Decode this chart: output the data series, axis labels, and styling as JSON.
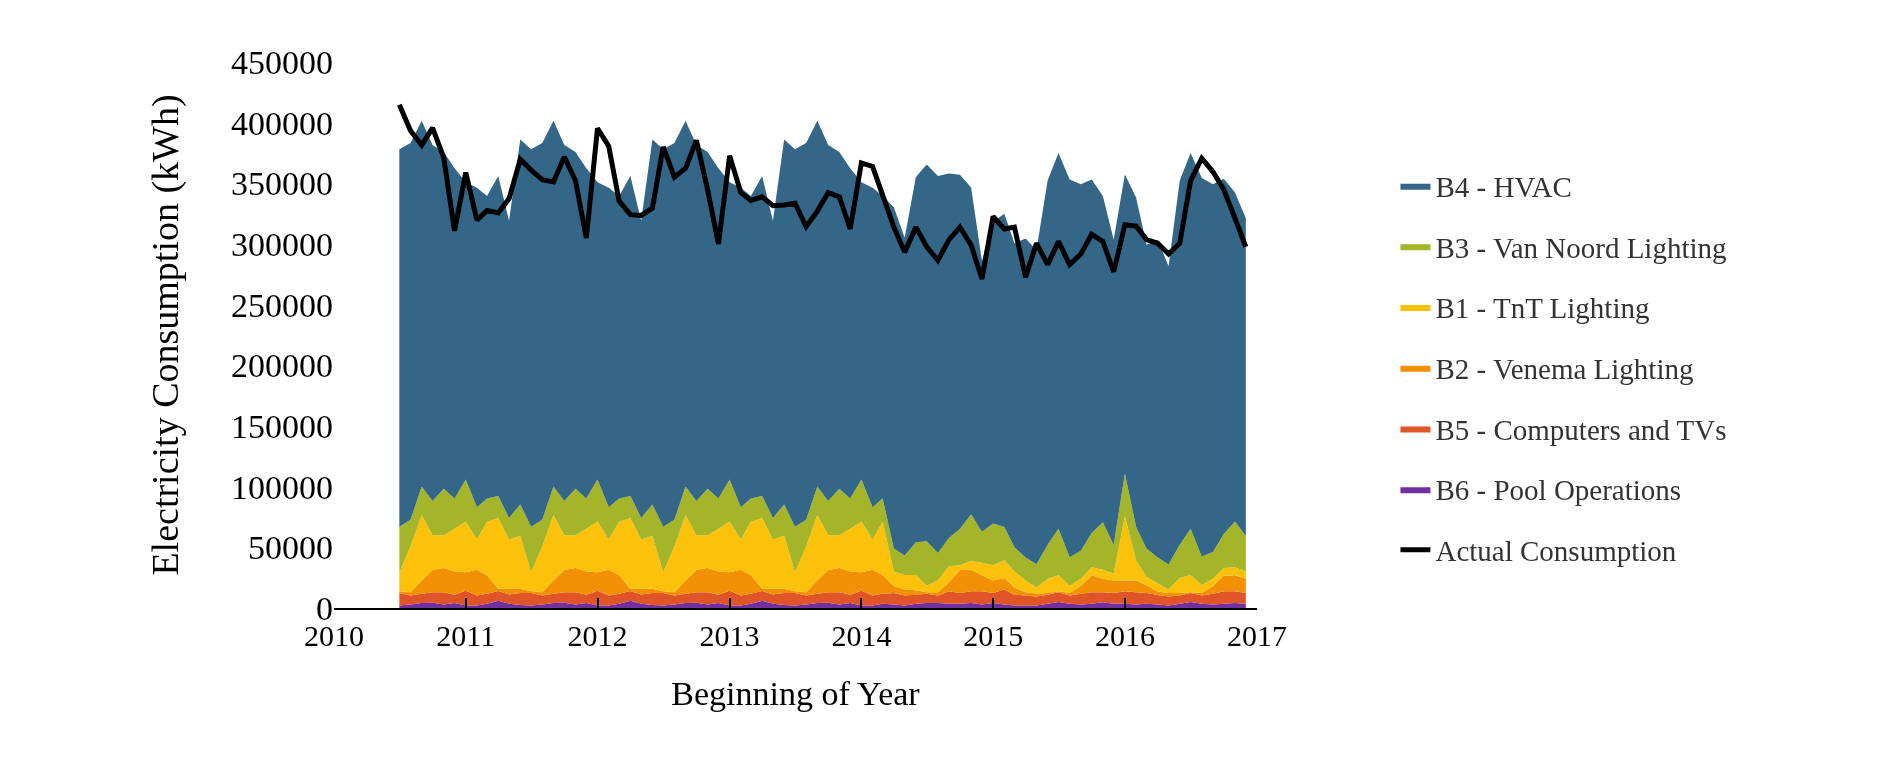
{
  "chart_data": {
    "type": "area",
    "stacked": true,
    "xlabel": "Beginning of Year",
    "ylabel": "Electricity Consumption (kWh)",
    "x": [
      "2010-07",
      "2010-08",
      "2010-09",
      "2010-10",
      "2010-11",
      "2010-12",
      "2011-01",
      "2011-02",
      "2011-03",
      "2011-04",
      "2011-05",
      "2011-06",
      "2011-07",
      "2011-08",
      "2011-09",
      "2011-10",
      "2011-11",
      "2011-12",
      "2012-01",
      "2012-02",
      "2012-03",
      "2012-04",
      "2012-05",
      "2012-06",
      "2012-07",
      "2012-08",
      "2012-09",
      "2012-10",
      "2012-11",
      "2012-12",
      "2013-01",
      "2013-02",
      "2013-03",
      "2013-04",
      "2013-05",
      "2013-06",
      "2013-07",
      "2013-08",
      "2013-09",
      "2013-10",
      "2013-11",
      "2013-12",
      "2014-01",
      "2014-02",
      "2014-03",
      "2014-04",
      "2014-05",
      "2014-06",
      "2014-07",
      "2014-08",
      "2014-09",
      "2014-10",
      "2014-11",
      "2014-12",
      "2015-01",
      "2015-02",
      "2015-03",
      "2015-04",
      "2015-05",
      "2015-06",
      "2015-07",
      "2015-08",
      "2015-09",
      "2015-10",
      "2015-11",
      "2015-12",
      "2016-01",
      "2016-02",
      "2016-03",
      "2016-04",
      "2016-05",
      "2016-06",
      "2016-07",
      "2016-08",
      "2016-09",
      "2016-10",
      "2016-11",
      "2016-12"
    ],
    "series": [
      {
        "name": "B6 - Pool Operations",
        "color": "#7030a0",
        "values": [
          2100,
          2900,
          4100,
          4400,
          2900,
          4100,
          2100,
          2100,
          3500,
          5900,
          3500,
          2400,
          2100,
          2900,
          4100,
          4400,
          2900,
          4100,
          2100,
          2100,
          3500,
          5900,
          3500,
          2400,
          2100,
          2900,
          4100,
          4400,
          2900,
          4100,
          2100,
          2100,
          3500,
          5900,
          3500,
          2400,
          2100,
          2900,
          4100,
          4400,
          2900,
          4100,
          2100,
          2100,
          3500,
          2900,
          2100,
          3500,
          4100,
          4100,
          3500,
          3500,
          4100,
          2900,
          4100,
          2900,
          2100,
          2100,
          2100,
          3500,
          5000,
          3500,
          2900,
          3500,
          4700,
          3500,
          3500,
          2900,
          3500,
          2900,
          2100,
          3500,
          5000,
          3500,
          2900,
          3500,
          4100,
          3500
        ]
      },
      {
        "name": "B5 - Computers and TVs",
        "color": "#e05527",
        "values": [
          10300,
          7400,
          7700,
          8500,
          10000,
          6800,
          12100,
          8200,
          8200,
          8200,
          7700,
          10000,
          10300,
          7400,
          7700,
          8500,
          10000,
          6800,
          12100,
          8200,
          8200,
          8200,
          7700,
          10000,
          10300,
          7400,
          7700,
          8500,
          10000,
          6800,
          12100,
          8200,
          8200,
          8200,
          7700,
          10000,
          10300,
          7400,
          7700,
          8500,
          10000,
          6800,
          12100,
          8200,
          8200,
          9400,
          8200,
          7400,
          7700,
          6200,
          10300,
          8800,
          9700,
          10900,
          8200,
          12400,
          8800,
          8200,
          7400,
          7400,
          7900,
          6800,
          8800,
          9400,
          8200,
          8800,
          10300,
          10000,
          8800,
          7900,
          7400,
          6800,
          7400,
          6800,
          8800,
          10300,
          9700,
          8800
        ]
      },
      {
        "name": "B2 - Venema Lighting",
        "color": "#f39106",
        "values": [
          1500,
          2600,
          10900,
          18500,
          20000,
          19100,
          15300,
          21200,
          15300,
          1800,
          4700,
          3500,
          1500,
          2600,
          10900,
          18500,
          20000,
          19100,
          15300,
          21200,
          15300,
          1800,
          4700,
          3500,
          1500,
          2600,
          10900,
          18500,
          20000,
          19100,
          15300,
          21200,
          15300,
          1800,
          4700,
          3500,
          1500,
          2600,
          10900,
          18500,
          20000,
          19100,
          15300,
          21200,
          15300,
          5900,
          5000,
          3800,
          1200,
          2600,
          7400,
          19100,
          17700,
          13200,
          10300,
          9400,
          5900,
          2600,
          2400,
          1500,
          900,
          2100,
          6500,
          14100,
          11200,
          10300,
          8800,
          9700,
          6500,
          2900,
          2900,
          2100,
          600,
          2100,
          6500,
          12700,
          13200,
          11800
        ]
      },
      {
        "name": "B1 - TnT Lighting",
        "color": "#fbc10b",
        "values": [
          15600,
          37700,
          53900,
          28500,
          27100,
          35300,
          41800,
          25000,
          44100,
          58300,
          40600,
          43600,
          15600,
          37700,
          53900,
          28500,
          27100,
          35300,
          41800,
          25000,
          44100,
          58300,
          40600,
          43600,
          15600,
          37700,
          53900,
          28500,
          27100,
          35300,
          41800,
          25000,
          44100,
          58300,
          40600,
          43600,
          15600,
          37700,
          53900,
          28500,
          27100,
          35300,
          41800,
          25000,
          44100,
          11800,
          11800,
          12400,
          5300,
          9700,
          13200,
          3800,
          7400,
          10300,
          12700,
          14700,
          13200,
          9700,
          5000,
          11800,
          13200,
          5900,
          5900,
          6500,
          7400,
          5900,
          53000,
          16800,
          6800,
          6800,
          2900,
          12400,
          14100,
          6500,
          5900,
          6500,
          6500,
          5900
        ]
      },
      {
        "name": "B3 - Van Noord Lighting",
        "color": "#a5b52a",
        "values": [
          37400,
          22100,
          23500,
          28300,
          38300,
          25000,
          34700,
          26500,
          19100,
          18200,
          17700,
          25900,
          37400,
          22100,
          23500,
          28300,
          38300,
          25000,
          34700,
          26500,
          19100,
          18200,
          17700,
          25900,
          37400,
          22100,
          23500,
          28300,
          38300,
          25000,
          34700,
          26500,
          19100,
          18200,
          17700,
          25900,
          37400,
          22100,
          23500,
          28300,
          38300,
          25000,
          34700,
          26500,
          19100,
          19100,
          16200,
          27100,
          36800,
          22700,
          23500,
          30000,
          38300,
          25600,
          34400,
          27400,
          20000,
          19100,
          19100,
          28000,
          38300,
          23500,
          23000,
          28300,
          39100,
          23500,
          35300,
          27400,
          23500,
          21200,
          20600,
          27400,
          38300,
          23500,
          22100,
          28000,
          37700,
          29400
        ]
      },
      {
        "name": "B4 - HVAC",
        "color": "#336687",
        "values": [
          311100,
          310500,
          301400,
          293400,
          277500,
          272200,
          244900,
          263400,
          249300,
          263700,
          244900,
          300800,
          311100,
          310500,
          301400,
          293400,
          277500,
          272200,
          244900,
          263400,
          249300,
          263700,
          244900,
          300800,
          311100,
          310500,
          301400,
          293400,
          277500,
          272200,
          244900,
          263400,
          249300,
          263700,
          244900,
          300800,
          311100,
          310500,
          301400,
          293400,
          277500,
          272200,
          244900,
          263400,
          249300,
          281100,
          261900,
          301100,
          310500,
          310800,
          300200,
          291900,
          269300,
          223100,
          248700,
          258100,
          250700,
          262800,
          259000,
          300200,
          309600,
          311400,
          302200,
          291400,
          269000,
          251600,
          246300,
          271600,
          250200,
          261900,
          245700,
          300200,
          309600,
          312000,
          303100,
          292800,
          271300,
          261900
        ]
      },
      {
        "name": "Actual Consumption",
        "color": "#000000",
        "type": "line",
        "values": [
          414800,
          393300,
          381500,
          395700,
          371200,
          310900,
          358900,
          319700,
          327700,
          325600,
          337400,
          369800,
          360900,
          353000,
          351200,
          371800,
          352100,
          305000,
          395400,
          380700,
          335300,
          324200,
          323600,
          329500,
          380100,
          355100,
          362400,
          385400,
          344800,
          300000,
          372700,
          342400,
          335900,
          338900,
          331500,
          332100,
          333600,
          314400,
          327100,
          342400,
          338900,
          312400,
          366800,
          363900,
          340300,
          313900,
          293300,
          313900,
          297700,
          286500,
          303600,
          313900,
          299100,
          271200,
          322700,
          312400,
          313900,
          272700,
          300600,
          283000,
          302100,
          283000,
          291800,
          308000,
          302100,
          277100,
          315900,
          314700,
          303600,
          300600,
          291800,
          300600,
          352100,
          370700,
          359500,
          344800,
          321200,
          297700
        ]
      }
    ],
    "xlim": [
      "2010",
      "2017"
    ],
    "xticks": [
      "2010",
      "2011",
      "2012",
      "2013",
      "2014",
      "2015",
      "2016",
      "2017"
    ],
    "ylim": [
      0,
      450000
    ],
    "yticks": [
      0,
      50000,
      100000,
      150000,
      200000,
      250000,
      300000,
      350000,
      400000,
      450000
    ],
    "legend": "right",
    "marker": "none",
    "line_style": "solid"
  }
}
